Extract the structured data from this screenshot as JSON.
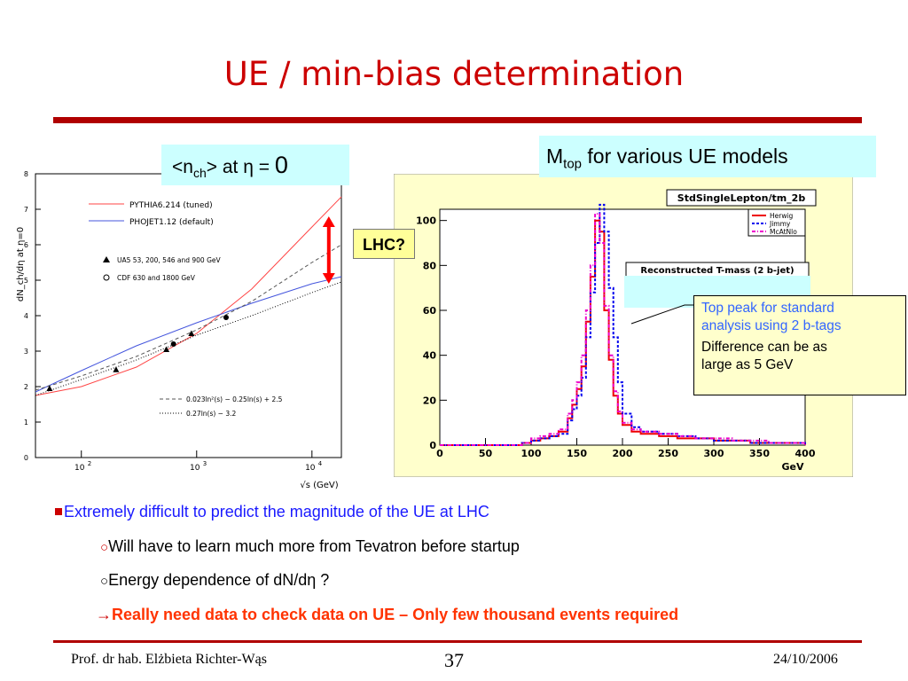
{
  "slide": {
    "title": "UE / min-bias determination",
    "callouts": {
      "nch_prefix": "<n",
      "nch_sub": "ch",
      "nch_mid": "> at η = ",
      "nch_zero": "0",
      "mtop_main": "M",
      "mtop_sub": "top",
      "mtop_rest": " for various UE models",
      "lhc": "LHC?",
      "peak_line1": "Top peak for standard",
      "peak_line2": "analysis using 2 b-tags",
      "diff_line1": "Difference can be as",
      "diff_line2": "large as 5 GeV"
    },
    "bullets": [
      "Extremely difficult to predict the magnitude of the UE at LHC",
      "Will have to learn much more from Tevatron before startup",
      "Energy dependence of dN/dη ?",
      "Really need data to check data on UE – Only few thousand events required"
    ],
    "footer": {
      "author": "Prof. dr hab. Elżbieta Richter-Wąs",
      "page": "37",
      "date": "24/10/2006"
    },
    "colors": {
      "title": "#cc0000",
      "rule": "#b00000",
      "callout_bg": "#ccffff",
      "lhc_bg": "#ffff99",
      "peak_bg": "#ffffcc",
      "arrow": "#ff0000"
    }
  },
  "chart_data": [
    {
      "type": "line",
      "ylabel": "dN_ch/dη at η=0",
      "xlabel": "√s (GeV)",
      "x_scale": "log",
      "xlim": [
        40,
        18000
      ],
      "ylim": [
        0,
        8
      ],
      "x_ticks": [
        {
          "v": 100,
          "label": "10",
          "exp": "2"
        },
        {
          "v": 1000,
          "label": "10",
          "exp": "3"
        },
        {
          "v": 10000,
          "label": "10",
          "exp": "4"
        }
      ],
      "y_ticks": [
        0,
        1,
        2,
        3,
        4,
        5,
        6,
        7,
        8
      ],
      "series": [
        {
          "name": "PYTHIA6.214 (tuned)",
          "color": "#ff4444",
          "style": "solid",
          "x": [
            40,
            100,
            300,
            1000,
            3000,
            10000,
            18000
          ],
          "y": [
            1.75,
            2.0,
            2.55,
            3.5,
            4.75,
            6.5,
            7.35
          ]
        },
        {
          "name": "PHOJET1.12 (default)",
          "color": "#4455dd",
          "style": "solid",
          "x": [
            40,
            100,
            300,
            1000,
            3000,
            10000,
            18000
          ],
          "y": [
            1.85,
            2.45,
            3.15,
            3.8,
            4.35,
            4.9,
            5.1
          ]
        },
        {
          "name": "0.023ln²(s) − 0.25ln(s) + 2.5",
          "color": "#555555",
          "style": "dashed",
          "x": [
            40,
            100,
            300,
            1000,
            3000,
            10000,
            18000
          ],
          "y": [
            1.9,
            2.3,
            2.85,
            3.6,
            4.4,
            5.5,
            6.0
          ]
        },
        {
          "name": "0.27ln(s) − 3.2",
          "color": "#000000",
          "style": "dotted",
          "x": [
            40,
            100,
            300,
            1000,
            3000,
            10000,
            18000
          ],
          "y": [
            1.75,
            2.2,
            2.75,
            3.45,
            4.0,
            4.65,
            4.95
          ]
        }
      ],
      "points": [
        {
          "name": "UA5 53, 200, 546 and 900 GeV",
          "marker": "triangle",
          "x": [
            53,
            200,
            546,
            900
          ],
          "y": [
            1.95,
            2.48,
            3.05,
            3.5
          ]
        },
        {
          "name": "CDF 630 and 1800 GeV",
          "marker": "circle",
          "x": [
            630,
            1800
          ],
          "y": [
            3.2,
            3.95
          ]
        }
      ],
      "annotation": "LHC spread arrow from 4.9 to 6.8 at 14000 GeV",
      "arrow": {
        "x": 14000,
        "y_low": 4.9,
        "y_high": 6.8
      }
    },
    {
      "type": "line",
      "title": "StdSingleLepton/tm_2b",
      "subtitle": "Reconstructed T-mass (2 b-jet)",
      "xlabel": "GeV",
      "xlim": [
        0,
        400
      ],
      "ylim": [
        0,
        105
      ],
      "x_ticks": [
        0,
        50,
        100,
        150,
        200,
        250,
        300,
        350,
        400
      ],
      "y_ticks": [
        0,
        20,
        40,
        60,
        80,
        100
      ],
      "series": [
        {
          "name": "Herwig",
          "color": "#ee0000",
          "style": "solid",
          "x": [
            0,
            90,
            100,
            110,
            120,
            130,
            140,
            145,
            150,
            155,
            160,
            165,
            170,
            175,
            180,
            185,
            190,
            195,
            200,
            210,
            220,
            240,
            260,
            280,
            300,
            320,
            340,
            360,
            380,
            400
          ],
          "y": [
            0,
            1,
            2,
            3,
            4,
            6,
            12,
            18,
            25,
            35,
            55,
            75,
            100,
            95,
            60,
            38,
            22,
            14,
            9,
            6,
            5,
            4,
            3,
            3,
            2,
            2,
            1,
            1,
            1,
            0
          ]
        },
        {
          "name": "Jimmy",
          "color": "#0000ee",
          "style": "dashed",
          "x": [
            0,
            90,
            100,
            110,
            120,
            130,
            140,
            145,
            150,
            155,
            160,
            165,
            170,
            175,
            180,
            185,
            190,
            195,
            200,
            210,
            220,
            240,
            260,
            280,
            300,
            320,
            340,
            360,
            380,
            400
          ],
          "y": [
            0,
            1,
            2,
            3,
            4,
            5,
            11,
            16,
            22,
            30,
            48,
            68,
            90,
            107,
            95,
            70,
            48,
            28,
            14,
            8,
            6,
            5,
            4,
            3,
            2,
            2,
            1,
            1,
            1,
            0
          ]
        },
        {
          "name": "McAtNlo",
          "color": "#ee00cc",
          "style": "dash-dot",
          "x": [
            0,
            90,
            100,
            110,
            120,
            130,
            140,
            145,
            150,
            155,
            160,
            165,
            170,
            175,
            180,
            185,
            190,
            195,
            200,
            210,
            220,
            240,
            260,
            280,
            300,
            320,
            340,
            360,
            380,
            400
          ],
          "y": [
            0,
            1,
            3,
            4,
            5,
            7,
            14,
            20,
            28,
            40,
            60,
            80,
            103,
            90,
            62,
            40,
            24,
            15,
            10,
            7,
            6,
            5,
            4,
            3,
            3,
            2,
            2,
            1,
            1,
            0
          ]
        }
      ]
    }
  ]
}
